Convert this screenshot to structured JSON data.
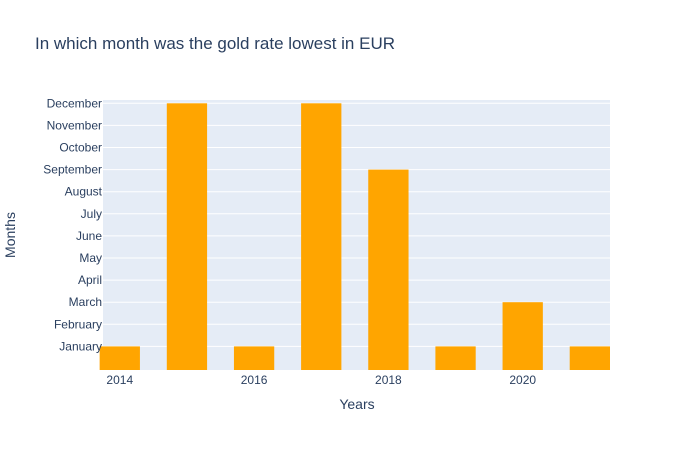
{
  "chart_data": {
    "type": "bar",
    "title": "In which month was the gold rate lowest in EUR",
    "xlabel": "Years",
    "ylabel": "Months",
    "categories": [
      2014,
      2015,
      2016,
      2017,
      2018,
      2019,
      2020,
      2021
    ],
    "values": [
      "January",
      "December",
      "January",
      "December",
      "September",
      "January",
      "March",
      "January"
    ],
    "x_ticks": [
      "2014",
      "2016",
      "2018",
      "2020"
    ],
    "y_categories": [
      "January",
      "February",
      "March",
      "April",
      "May",
      "June",
      "July",
      "August",
      "September",
      "October",
      "November",
      "December"
    ],
    "colors": {
      "bar": "#FFA500",
      "plot_bg": "#E5ECF6",
      "grid": "#FFFFFF",
      "text": "#2a3f5f"
    },
    "grid": true,
    "legend": false
  }
}
